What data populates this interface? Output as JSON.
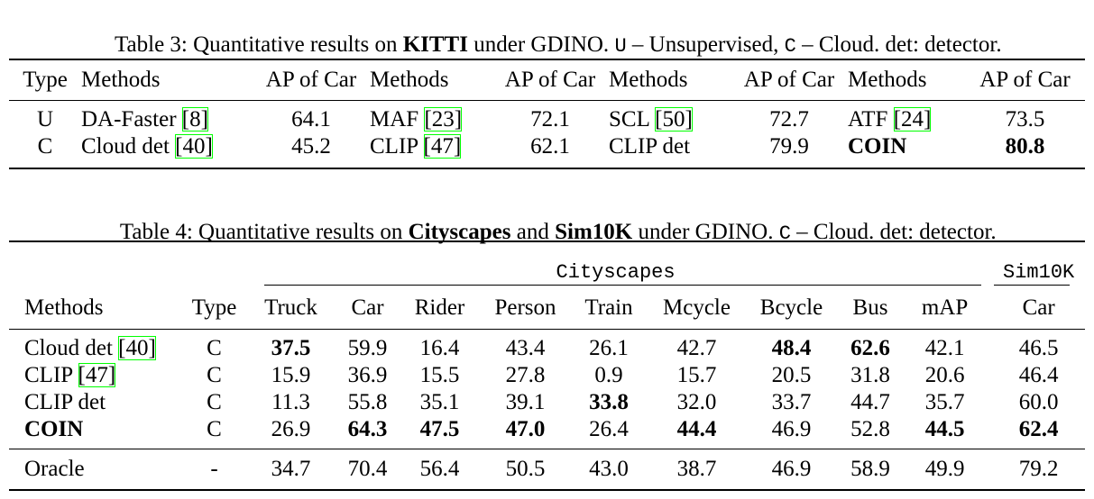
{
  "table3": {
    "caption": [
      "Table 3: Quantitative results on ",
      "KITTI",
      " under GDINO. ",
      "U",
      " – Unsupervised, ",
      "C",
      " – Cloud. det: detector."
    ],
    "header": [
      "Type",
      "Methods",
      "AP of Car",
      "Methods",
      "AP of Car",
      "Methods",
      "AP of Car",
      "Methods",
      "AP of Car"
    ],
    "rows": [
      [
        "U",
        {
          "name": "DA-Faster",
          "cite": "[8]"
        },
        "64.1",
        {
          "name": "MAF",
          "cite": "[23]"
        },
        "72.1",
        {
          "name": "SCL",
          "cite": "[50]"
        },
        "72.7",
        {
          "name": "ATF",
          "cite": "[24]"
        },
        "73.5"
      ],
      [
        "C",
        {
          "name": "Cloud det",
          "cite": "[40]"
        },
        "45.2",
        {
          "name": "CLIP",
          "cite": "[47]"
        },
        "62.1",
        "CLIP det",
        "79.9",
        "COIN",
        "80.8"
      ]
    ]
  },
  "table4": {
    "caption": [
      "Table 4: Quantitative results on ",
      "Cityscapes",
      " and ",
      "Sim10K",
      " under GDINO. ",
      "C",
      " – Cloud. det: detector."
    ],
    "group_headers": [
      "Cityscapes",
      "Sim10K"
    ],
    "header": [
      "Methods",
      "Type",
      "Truck",
      "Car",
      "Rider",
      "Person",
      "Train",
      "Mcycle",
      "Bcycle",
      "Bus",
      "mAP",
      "Car"
    ],
    "rows": [
      [
        {
          "name": "Cloud det",
          "cite": "[40]"
        },
        "C",
        "37.5",
        "59.9",
        "16.4",
        "43.4",
        "26.1",
        "42.7",
        "48.4",
        "62.6",
        "42.1",
        "46.5"
      ],
      [
        {
          "name": "CLIP",
          "cite": "[47]"
        },
        "C",
        "15.9",
        "36.9",
        "15.5",
        "27.8",
        "0.9",
        "15.7",
        "20.5",
        "31.8",
        "20.6",
        "46.4"
      ],
      [
        "CLIP det",
        "C",
        "11.3",
        "55.8",
        "35.1",
        "39.1",
        "33.8",
        "32.0",
        "33.7",
        "44.7",
        "35.7",
        "60.0"
      ],
      [
        "COIN",
        "C",
        "26.9",
        "64.3",
        "47.5",
        "47.0",
        "26.4",
        "44.4",
        "46.9",
        "52.8",
        "44.5",
        "62.4"
      ],
      [
        "Oracle",
        "-",
        "34.7",
        "70.4",
        "56.4",
        "50.5",
        "43.0",
        "38.7",
        "46.9",
        "58.9",
        "49.9",
        "79.2"
      ]
    ]
  }
}
